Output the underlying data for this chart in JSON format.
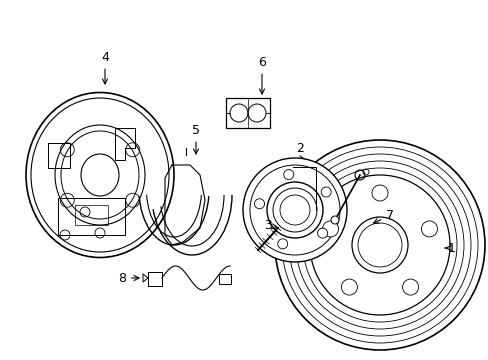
{
  "background_color": "#ffffff",
  "line_color": "#000000",
  "label_color": "#000000",
  "figsize": [
    4.89,
    3.6
  ],
  "dpi": 100,
  "xlim": [
    0,
    489
  ],
  "ylim": [
    0,
    360
  ]
}
